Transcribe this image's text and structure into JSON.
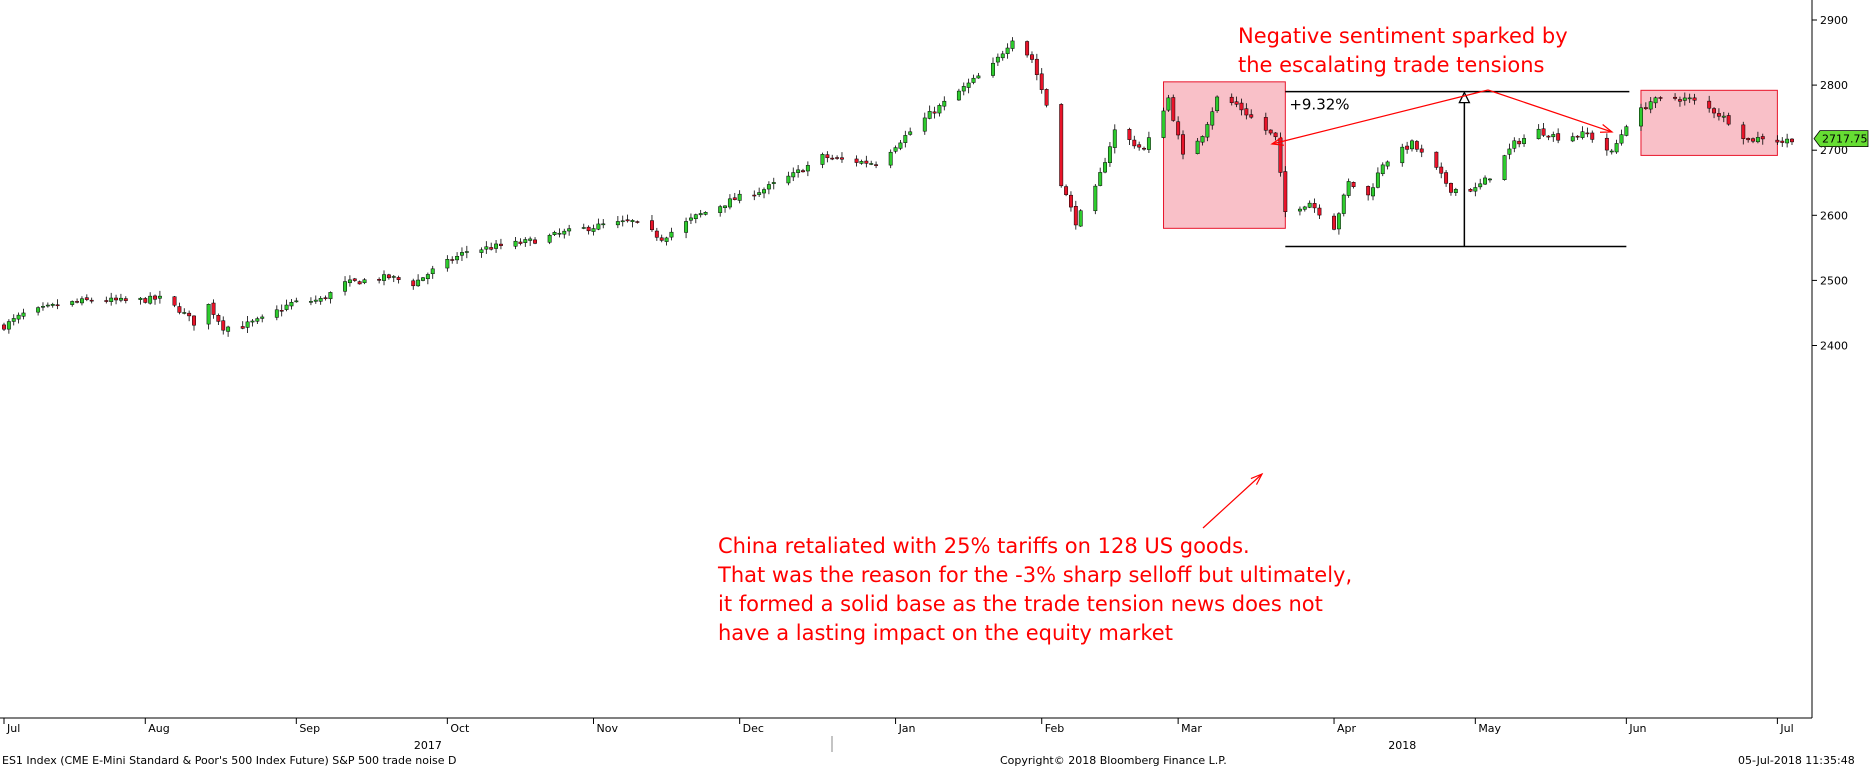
{
  "chart_data": {
    "type": "candlestick",
    "title": "",
    "xlabel": "",
    "ylabel": "",
    "ylim": [
      2360,
      2910
    ],
    "y_ticks": [
      2400,
      2500,
      2600,
      2700,
      2800,
      2900
    ],
    "y_tick_labels": [
      "2400",
      "2500",
      "2600",
      "2700",
      "2800",
      "2900"
    ],
    "x_month_labels": [
      {
        "label": "Jul",
        "date": "2017-07-03"
      },
      {
        "label": "Aug",
        "date": "2017-08-01"
      },
      {
        "label": "Sep",
        "date": "2017-09-01"
      },
      {
        "label": "Oct",
        "date": "2017-10-02"
      },
      {
        "label": "Nov",
        "date": "2017-11-01"
      },
      {
        "label": "Dec",
        "date": "2017-12-01"
      },
      {
        "label": "Jan",
        "date": "2018-01-02"
      },
      {
        "label": "Feb",
        "date": "2018-02-01"
      },
      {
        "label": "Mar",
        "date": "2018-03-01"
      },
      {
        "label": "Apr",
        "date": "2018-04-02"
      },
      {
        "label": "May",
        "date": "2018-05-01"
      },
      {
        "label": "Jun",
        "date": "2018-06-01"
      },
      {
        "label": "Jul",
        "date": "2018-07-02"
      }
    ],
    "x_year_labels": [
      {
        "label": "2017",
        "date": "2017-09-28"
      },
      {
        "label": "2018",
        "date": "2018-04-16"
      }
    ],
    "x_range": [
      "2017-07-03",
      "2018-07-05"
    ],
    "last_price": 2717.75,
    "last_price_label": "2717.75",
    "grid": false,
    "series": [
      {
        "name": "",
        "ohlc_keypoints": [
          [
            "2017-07-03",
            2430
          ],
          [
            "2017-07-07",
            2448
          ],
          [
            "2017-07-14",
            2462
          ],
          [
            "2017-07-21",
            2470
          ],
          [
            "2017-07-28",
            2468
          ],
          [
            "2017-08-04",
            2472
          ],
          [
            "2017-08-08",
            2455
          ],
          [
            "2017-08-11",
            2435
          ],
          [
            "2017-08-14",
            2462
          ],
          [
            "2017-08-17",
            2428
          ],
          [
            "2017-08-21",
            2430
          ],
          [
            "2017-08-25",
            2440
          ],
          [
            "2017-08-31",
            2465
          ],
          [
            "2017-09-06",
            2470
          ],
          [
            "2017-09-11",
            2495
          ],
          [
            "2017-09-15",
            2500
          ],
          [
            "2017-09-20",
            2505
          ],
          [
            "2017-09-25",
            2495
          ],
          [
            "2017-09-29",
            2515
          ],
          [
            "2017-10-06",
            2545
          ],
          [
            "2017-10-13",
            2553
          ],
          [
            "2017-10-19",
            2560
          ],
          [
            "2017-10-27",
            2575
          ],
          [
            "2017-11-03",
            2585
          ],
          [
            "2017-11-09",
            2590
          ],
          [
            "2017-11-15",
            2565
          ],
          [
            "2017-11-22",
            2598
          ],
          [
            "2017-11-30",
            2625
          ],
          [
            "2017-12-06",
            2640
          ],
          [
            "2017-12-12",
            2662
          ],
          [
            "2017-12-18",
            2690
          ],
          [
            "2017-12-22",
            2685
          ],
          [
            "2017-12-29",
            2680
          ],
          [
            "2018-01-03",
            2715
          ],
          [
            "2018-01-09",
            2755
          ],
          [
            "2018-01-15",
            2790
          ],
          [
            "2018-01-22",
            2830
          ],
          [
            "2018-01-26",
            2872
          ],
          [
            "2018-01-30",
            2840
          ],
          [
            "2018-02-02",
            2770
          ],
          [
            "2018-02-05",
            2650
          ],
          [
            "2018-02-08",
            2590
          ],
          [
            "2018-02-12",
            2640
          ],
          [
            "2018-02-16",
            2730
          ],
          [
            "2018-02-22",
            2700
          ],
          [
            "2018-02-27",
            2780
          ],
          [
            "2018-03-02",
            2690
          ],
          [
            "2018-03-06",
            2725
          ],
          [
            "2018-03-09",
            2780
          ],
          [
            "2018-03-13",
            2770
          ],
          [
            "2018-03-16",
            2750
          ],
          [
            "2018-03-21",
            2718
          ],
          [
            "2018-03-23",
            2605
          ],
          [
            "2018-03-28",
            2620
          ],
          [
            "2018-04-02",
            2582
          ],
          [
            "2018-04-05",
            2650
          ],
          [
            "2018-04-09",
            2630
          ],
          [
            "2018-04-12",
            2680
          ],
          [
            "2018-04-18",
            2710
          ],
          [
            "2018-04-23",
            2670
          ],
          [
            "2018-04-26",
            2640
          ],
          [
            "2018-05-01",
            2640
          ],
          [
            "2018-05-04",
            2660
          ],
          [
            "2018-05-09",
            2710
          ],
          [
            "2018-05-14",
            2730
          ],
          [
            "2018-05-18",
            2720
          ],
          [
            "2018-05-24",
            2725
          ],
          [
            "2018-05-29",
            2695
          ],
          [
            "2018-06-01",
            2740
          ],
          [
            "2018-06-06",
            2775
          ],
          [
            "2018-06-11",
            2780
          ],
          [
            "2018-06-14",
            2778
          ],
          [
            "2018-06-19",
            2760
          ],
          [
            "2018-06-22",
            2745
          ],
          [
            "2018-06-26",
            2715
          ],
          [
            "2018-06-29",
            2720
          ],
          [
            "2018-07-03",
            2713
          ],
          [
            "2018-07-05",
            2717.75
          ]
        ]
      }
    ],
    "shaded_regions": [
      {
        "x0": "2018-02-26",
        "x1": "2018-03-23",
        "y0": 2580,
        "y1": 2805
      },
      {
        "x0": "2018-06-04",
        "x1": "2018-07-02",
        "y0": 2692,
        "y1": 2792
      }
    ],
    "range_measure": {
      "x0": "2018-03-23",
      "x1": "2018-06-01",
      "low": 2552,
      "high": 2790,
      "pct_label": "+9.32%"
    },
    "annotations": [
      {
        "id": "top",
        "lines": [
          "Negative sentiment sparked by",
          "the escalating trade tensions"
        ]
      },
      {
        "id": "bottom",
        "lines": [
          "China retaliated with 25% tariffs on 128 US goods.",
          "That was the reason for the -3% sharp selloff but ultimately,",
          "it formed a solid base as the trade tension news does not",
          "have a lasting impact on the equity market"
        ]
      }
    ]
  },
  "footer": {
    "left": "ES1 Index (CME E-Mini Standard & Poor's 500 Index Future) S&P 500 trade noise  D",
    "center": "Copyright© 2018 Bloomberg Finance L.P.",
    "right": "05-Jul-2018 11:35:48"
  },
  "colors": {
    "up": "#2ecc2e",
    "down": "#e8142a",
    "shade_fill": "#f9c0c8",
    "shade_stroke": "#e8142a",
    "annotation": "#ff0000",
    "last_tag": "#66dd33"
  }
}
